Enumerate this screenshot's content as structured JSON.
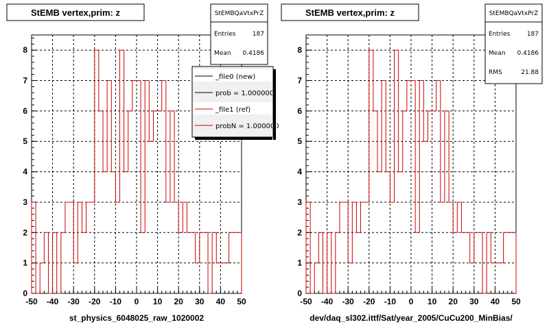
{
  "chart_data": [
    {
      "type": "step",
      "title": "StEMB  vertex,prim: z",
      "xlabel": "st_physics_6048025_raw_1020002",
      "ylabel": "",
      "xlim": [
        -50,
        50
      ],
      "ylim": [
        0,
        8.5
      ],
      "xticks": [
        -50,
        -40,
        -30,
        -20,
        -10,
        0,
        10,
        20,
        30,
        40,
        50
      ],
      "yticks": [
        0,
        1,
        2,
        3,
        4,
        5,
        6,
        7,
        8
      ],
      "grid": true,
      "bin_width": 2,
      "series": [
        {
          "name": "_file1 (ref)",
          "color": "#cc0000",
          "bin_edges_start": -50,
          "values": [
            3,
            0,
            1,
            2,
            0,
            2,
            0,
            2,
            3,
            3,
            1,
            3,
            2,
            3,
            3,
            8,
            6,
            4,
            7,
            4,
            3,
            8,
            4,
            6,
            7,
            7,
            2,
            7,
            5,
            6,
            6,
            7,
            3,
            6,
            3,
            2,
            3,
            2,
            2,
            1,
            2,
            2,
            0,
            2,
            1,
            1,
            1,
            2,
            2,
            2
          ]
        }
      ],
      "stats": {
        "header": "StEMBQaVtxPrZ",
        "rows": [
          {
            "label": "Entries",
            "value": "187"
          },
          {
            "label": "Mean",
            "value": "0.4186"
          }
        ]
      },
      "legend": {
        "placement": "top-right",
        "entries": [
          {
            "label": "_file0 (new)",
            "color": "#000000"
          },
          {
            "label": "prob = 1.000000",
            "color": "#000000"
          },
          {
            "label": "_file1 (ref)",
            "color": "#cc0000"
          },
          {
            "label": "probN = 1.000000",
            "color": "#cc0000"
          }
        ]
      }
    },
    {
      "type": "step",
      "title": "StEMB  vertex,prim: z",
      "xlabel": "dev/daq_sl302.ittf/Sat/year_2005/CuCu200_MinBias/",
      "ylabel": "",
      "xlim": [
        -50,
        50
      ],
      "ylim": [
        0,
        8.5
      ],
      "xticks": [
        -50,
        -40,
        -30,
        -20,
        -10,
        0,
        10,
        20,
        30,
        40,
        50
      ],
      "yticks": [
        0,
        1,
        2,
        3,
        4,
        5,
        6,
        7,
        8
      ],
      "grid": true,
      "bin_width": 2,
      "series": [
        {
          "name": "",
          "color": "#cc0000",
          "bin_edges_start": -50,
          "values": [
            3,
            0,
            1,
            2,
            0,
            2,
            0,
            2,
            3,
            3,
            1,
            3,
            2,
            3,
            3,
            8,
            6,
            4,
            7,
            4,
            3,
            8,
            4,
            6,
            7,
            7,
            2,
            7,
            5,
            6,
            6,
            7,
            3,
            6,
            3,
            2,
            3,
            2,
            2,
            1,
            2,
            2,
            0,
            2,
            1,
            1,
            1,
            2,
            2,
            2
          ]
        }
      ],
      "stats": {
        "header": "StEMBQaVtxPrZ",
        "rows": [
          {
            "label": "Entries",
            "value": "187"
          },
          {
            "label": "Mean",
            "value": "0.4186"
          },
          {
            "label": "RMS",
            "value": "21.88"
          }
        ]
      }
    }
  ]
}
